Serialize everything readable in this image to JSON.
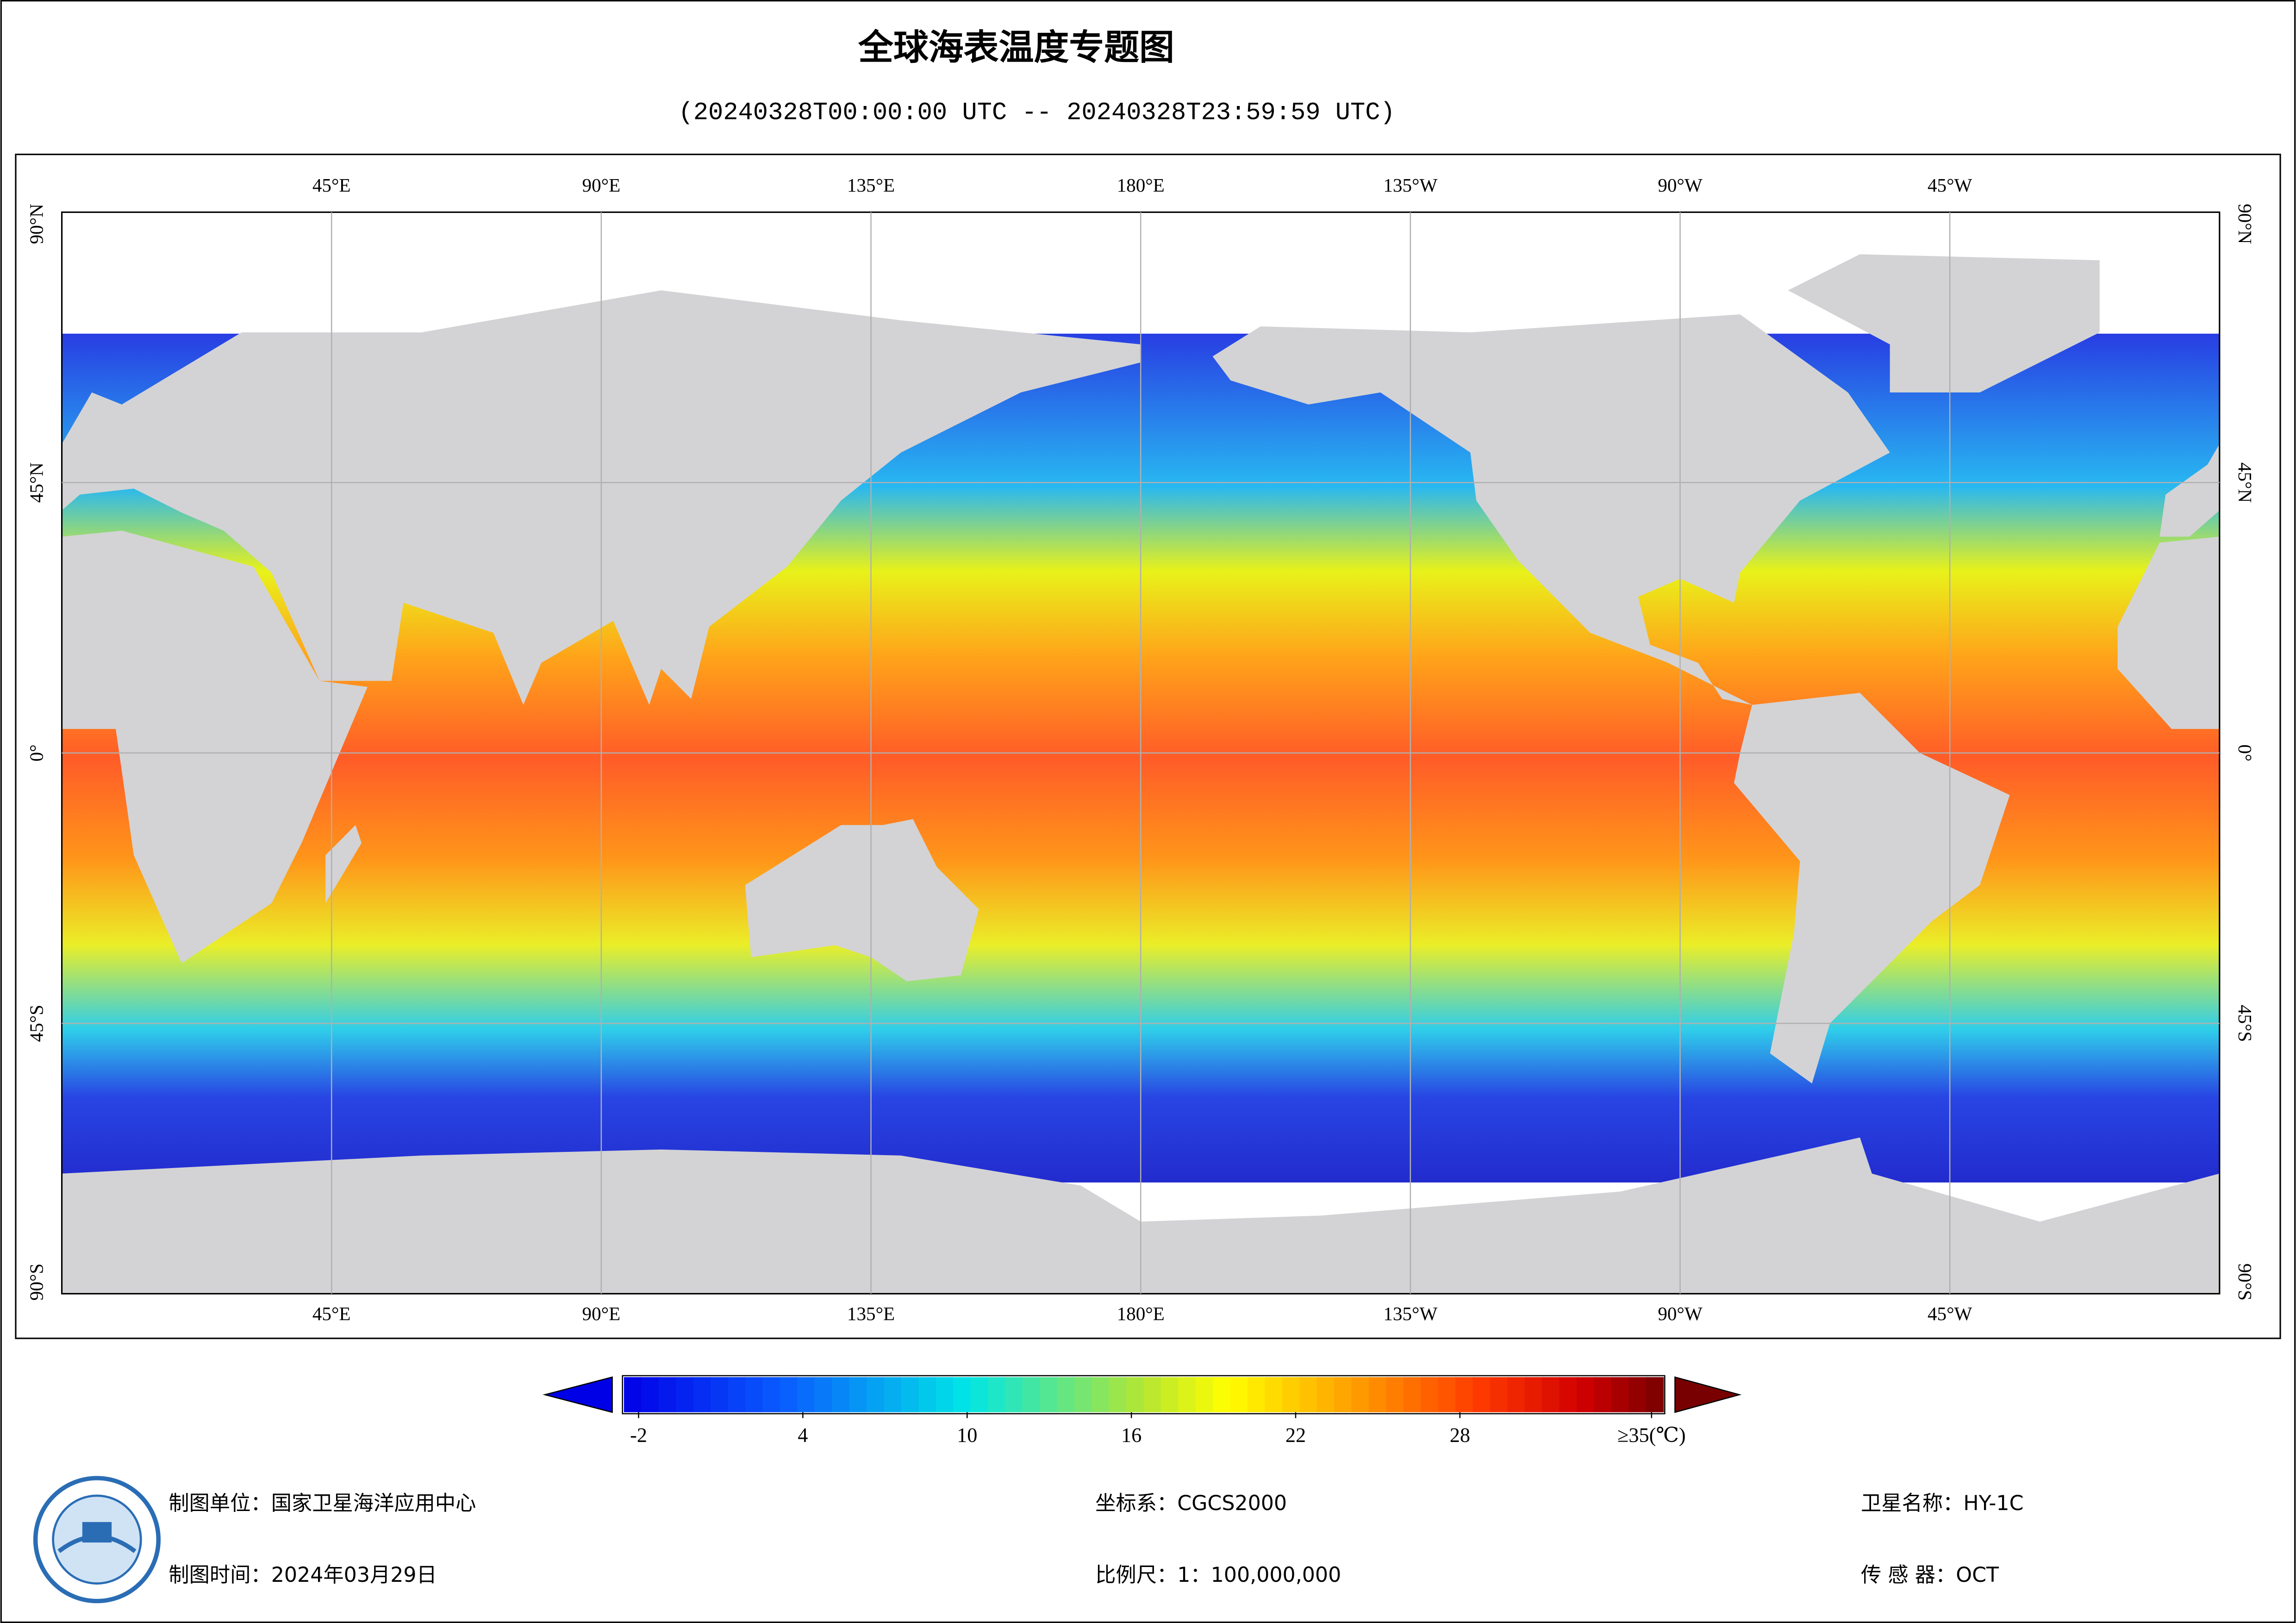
{
  "header": {
    "title": "全球海表温度专题图",
    "subtitle": "(20240328T00:00:00 UTC -- 20240328T23:59:59 UTC)"
  },
  "map": {
    "lon_labels": [
      "45°E",
      "90°E",
      "135°E",
      "180°E",
      "135°W",
      "90°W",
      "45°W"
    ],
    "lat_labels": [
      "90°N",
      "45°N",
      "0°",
      "45°S",
      "90°S"
    ]
  },
  "colorbar": {
    "ticks": [
      -2,
      4,
      10,
      16,
      22,
      28,
      {
        "value": 35,
        "label": "≥35(℃)"
      }
    ]
  },
  "footer": {
    "left": [
      "制图单位：国家卫星海洋应用中心",
      "制图时间：2024年03月29日"
    ],
    "center": [
      "坐标系：CGCS2000",
      "比例尺：1：100,000,000"
    ],
    "right": [
      "卫星名称：HY-1C",
      "传 感 器：OCT"
    ]
  }
}
